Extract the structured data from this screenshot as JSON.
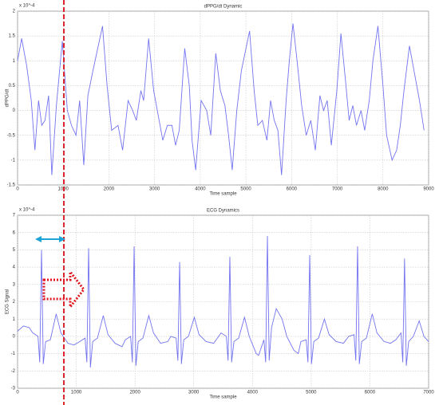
{
  "chart_data": [
    {
      "type": "line",
      "title": "dPPG/dt Dynamic",
      "xlabel": "Time sample",
      "ylabel": "dPPG/dt",
      "y_multiplier": "x 10^-4",
      "xlim": [
        0,
        9000
      ],
      "xticks": [
        0,
        1000,
        2000,
        3000,
        4000,
        5000,
        6000,
        7000,
        8000,
        9000
      ],
      "ylim": [
        -1.5,
        2
      ],
      "yticks": [
        -1.5,
        -1,
        -0.5,
        0,
        0.5,
        1,
        1.5,
        2
      ],
      "grid": true,
      "series": [
        {
          "color": "#7373f0",
          "x": [
            0,
            90,
            200,
            300,
            380,
            460,
            530,
            600,
            680,
            750,
            850,
            980,
            1090,
            1180,
            1280,
            1360,
            1450,
            1540,
            1650,
            1860,
            1960,
            2060,
            2200,
            2300,
            2420,
            2520,
            2600,
            2700,
            2760,
            2870,
            2980,
            3080,
            3180,
            3280,
            3380,
            3460,
            3540,
            3660,
            3760,
            3820,
            3900,
            4020,
            4140,
            4230,
            4340,
            4440,
            4540,
            4620,
            4700,
            4800,
            4900,
            5080,
            5180,
            5260,
            5360,
            5460,
            5540,
            5620,
            5700,
            5780,
            5880,
            5950,
            6030,
            6120,
            6220,
            6320,
            6420,
            6520,
            6620,
            6700,
            6780,
            6870,
            6990,
            7080,
            7180,
            7260,
            7340,
            7420,
            7520,
            7600,
            7700,
            7780,
            7890,
            8000,
            8080,
            8200,
            8300,
            8380,
            8460,
            8580,
            8700,
            8800,
            8900
          ],
          "values": [
            1.0,
            1.45,
            0.9,
            0.2,
            -0.8,
            0.2,
            -0.3,
            -0.2,
            0.3,
            -1.3,
            0.1,
            1.4,
            0.0,
            -0.3,
            -0.5,
            0.2,
            -1.1,
            0.3,
            0.8,
            1.7,
            0.5,
            -0.4,
            -0.3,
            -0.8,
            0.2,
            0.0,
            -0.2,
            0.4,
            0.2,
            1.45,
            0.4,
            -0.1,
            -0.6,
            -0.3,
            -0.3,
            -0.7,
            -0.4,
            1.25,
            0.5,
            -0.6,
            -1.2,
            0.2,
            0.0,
            -0.5,
            1.15,
            0.4,
            0.1,
            -0.5,
            -1.2,
            0.0,
            0.8,
            1.6,
            0.4,
            -0.3,
            -0.2,
            -0.6,
            0.2,
            -0.2,
            -0.4,
            -1.3,
            0.2,
            1.0,
            1.75,
            1.0,
            0.1,
            -0.5,
            -0.2,
            -0.8,
            0.3,
            0.0,
            0.2,
            -0.7,
            0.4,
            1.55,
            0.6,
            -0.2,
            0.1,
            -0.3,
            0.0,
            -0.4,
            0.2,
            1.0,
            1.7,
            0.5,
            -0.5,
            -1.0,
            -0.8,
            -0.3,
            0.4,
            1.3,
            0.7,
            0.2,
            -0.4
          ]
        }
      ]
    },
    {
      "type": "line",
      "title": "ECG Dynamics",
      "xlabel": "Time sample",
      "ylabel": "ECG Signal",
      "y_multiplier": "x 10^-4",
      "xlim": [
        0,
        7000
      ],
      "xticks": [
        0,
        1000,
        2000,
        3000,
        4000,
        5000,
        6000,
        7000
      ],
      "ylim": [
        -3,
        7
      ],
      "yticks": [
        -3,
        -2,
        -1,
        0,
        1,
        2,
        3,
        4,
        5,
        6,
        7
      ],
      "grid": true,
      "series": [
        {
          "color": "#7373f0",
          "x": [
            0,
            100,
            200,
            258,
            348,
            378,
            408,
            438,
            478,
            558,
            658,
            738,
            858,
            960,
            1060,
            1150,
            1180,
            1210,
            1240,
            1280,
            1360,
            1460,
            1540,
            1660,
            1780,
            1835,
            1925,
            1955,
            1985,
            2015,
            2055,
            2135,
            2235,
            2315,
            2435,
            2560,
            2610,
            2700,
            2730,
            2760,
            2790,
            2830,
            2910,
            3010,
            3090,
            3210,
            3340,
            3465,
            3555,
            3585,
            3615,
            3645,
            3685,
            3765,
            3865,
            3945,
            4065,
            4105,
            4195,
            4225,
            4255,
            4285,
            4325,
            4405,
            4505,
            4585,
            4705,
            4780,
            4825,
            4915,
            4945,
            4975,
            5005,
            5045,
            5125,
            5225,
            5305,
            5425,
            5550,
            5640,
            5730,
            5760,
            5790,
            5820,
            5860,
            5940,
            6040,
            6120,
            6240,
            6350,
            6440,
            6530,
            6560,
            6590,
            6620,
            6660,
            6740,
            6840,
            6920,
            7000
          ],
          "values": [
            0.3,
            0.6,
            0.5,
            0.2,
            0.0,
            -1.5,
            5.0,
            -1.6,
            -0.3,
            -0.2,
            1.3,
            0.2,
            -0.4,
            -0.5,
            -0.3,
            -0.1,
            -1.5,
            5.1,
            -1.8,
            -0.3,
            -0.1,
            1.2,
            0.1,
            -0.4,
            -0.6,
            -0.2,
            0.0,
            -1.5,
            5.2,
            -1.7,
            -0.3,
            -0.1,
            1.2,
            0.2,
            -0.4,
            -0.3,
            0.0,
            -0.1,
            -1.4,
            4.3,
            -1.6,
            -0.2,
            0.0,
            1.1,
            0.1,
            -0.3,
            -0.4,
            0.2,
            0.0,
            -1.4,
            4.6,
            -1.5,
            -0.3,
            -0.1,
            1.1,
            0.0,
            -1.0,
            -1.1,
            -0.2,
            -1.5,
            5.8,
            -1.4,
            0.5,
            1.6,
            1.0,
            0.0,
            -0.8,
            -1.0,
            -0.3,
            -0.2,
            -1.5,
            4.7,
            -1.6,
            -0.3,
            -0.1,
            1.0,
            0.1,
            -0.3,
            -0.4,
            0.0,
            0.1,
            -1.4,
            5.2,
            -1.6,
            -0.3,
            -0.1,
            1.3,
            0.2,
            -0.3,
            -0.4,
            -0.2,
            0.2,
            -1.5,
            4.5,
            -1.7,
            -0.3,
            0.0,
            0.9,
            0.0,
            -0.3
          ]
        }
      ]
    }
  ]
}
